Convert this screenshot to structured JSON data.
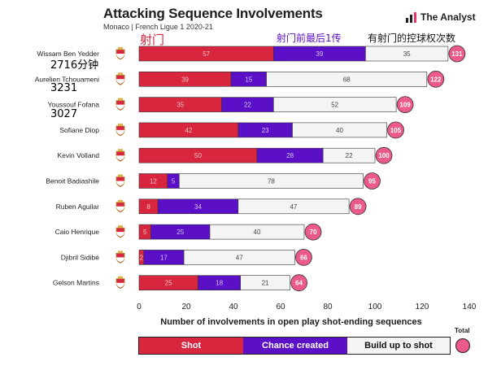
{
  "header": {
    "title": "Attacking Sequence Involvements",
    "subtitle": "Monaco | French Ligue 1 2020-21",
    "brand": "The Analyst"
  },
  "annotations": {
    "shot_label": "射门",
    "chance_label": "射门前最后1传",
    "build_label": "有射门的控球权次数",
    "player_notes": [
      {
        "player": "Wissam Ben Yedder",
        "text": "2716分钟"
      },
      {
        "player": "Aurelien Tchouameni",
        "text": "3231"
      },
      {
        "player": "Youssouf Fofana",
        "text": "3027"
      }
    ]
  },
  "legend": {
    "shot": "Shot",
    "chance": "Chance created",
    "build": "Build up to shot",
    "total": "Total"
  },
  "colors": {
    "shot": "#d7263d",
    "chance": "#5b0fc6",
    "build": "#f4f4f4",
    "total": "#ec5a8a"
  },
  "chart_data": {
    "type": "bar",
    "orientation": "horizontal",
    "stacked": true,
    "xlabel": "Number of involvements in open play shot-ending sequences",
    "xlim": [
      0,
      140
    ],
    "xticks": [
      0,
      20,
      40,
      60,
      80,
      100,
      120,
      140
    ],
    "categories": [
      "Wissam Ben Yedder",
      "Aurelien Tchouameni",
      "Youssouf Fofana",
      "Sofiane Diop",
      "Kevin Volland",
      "Benoit Badiashile",
      "Ruben Aguilar",
      "Caio Henrique",
      "Djibril Sidibé",
      "Gelson Martins"
    ],
    "series": [
      {
        "name": "Shot",
        "values": [
          57,
          39,
          35,
          42,
          50,
          12,
          8,
          5,
          2,
          25
        ]
      },
      {
        "name": "Chance created",
        "values": [
          39,
          15,
          22,
          23,
          28,
          5,
          34,
          25,
          17,
          18
        ]
      },
      {
        "name": "Build up to shot",
        "values": [
          35,
          68,
          52,
          40,
          22,
          78,
          47,
          40,
          47,
          21
        ]
      }
    ],
    "totals": [
      131,
      122,
      109,
      105,
      100,
      95,
      89,
      70,
      66,
      64
    ]
  }
}
